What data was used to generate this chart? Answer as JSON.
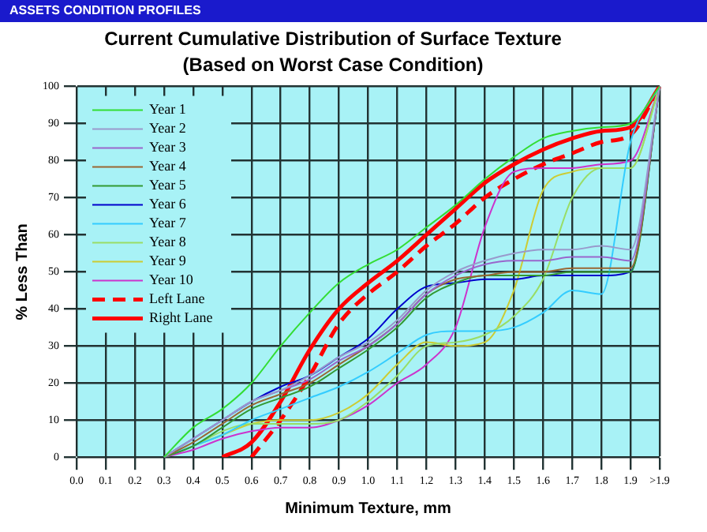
{
  "chart_data": {
    "type": "line",
    "title": "Current Cumulative Distribution of Surface Texture",
    "subtitle": "(Based on Worst Case Condition)",
    "annotations": [
      "ASSETS CONDITION PROFILES"
    ],
    "xlabel": "Minimum Texture, mm",
    "ylabel": "% Less Than",
    "categories": [
      "0.0",
      "0.1",
      "0.2",
      "0.3",
      "0.4",
      "0.5",
      "0.6",
      "0.7",
      "0.8",
      "0.9",
      "1.0",
      "1.1",
      "1.2",
      "1.3",
      "1.4",
      "1.5",
      "1.6",
      "1.7",
      "1.8",
      "1.9",
      ">1.9"
    ],
    "ylim": [
      0,
      100
    ],
    "yticks": [
      0,
      10,
      20,
      30,
      40,
      50,
      60,
      70,
      80,
      90,
      100
    ],
    "grid": true,
    "legend": "top left",
    "marker": "none",
    "series": [
      {
        "name": "Year 1",
        "color": "#33dd33",
        "values": [
          null,
          null,
          null,
          0,
          8,
          13,
          20,
          30,
          39,
          47,
          52,
          56,
          62,
          68,
          75,
          81,
          86,
          88,
          89,
          90,
          100
        ]
      },
      {
        "name": "Year 2",
        "color": "#9999cc",
        "values": [
          null,
          null,
          null,
          0,
          5,
          10,
          15,
          18,
          22,
          27,
          31,
          37,
          45,
          50,
          53,
          55,
          56,
          56,
          57,
          56,
          100
        ]
      },
      {
        "name": "Year 3",
        "color": "#9966cc",
        "values": [
          null,
          null,
          null,
          0,
          5,
          10,
          15,
          18,
          21,
          26,
          30,
          36,
          44,
          49,
          52,
          53,
          53,
          54,
          54,
          53,
          100
        ]
      },
      {
        "name": "Year 4",
        "color": "#996633",
        "values": [
          null,
          null,
          null,
          0,
          4,
          9,
          14,
          17,
          20,
          25,
          30,
          36,
          44,
          48,
          49,
          50,
          50,
          51,
          51,
          51,
          100
        ]
      },
      {
        "name": "Year 5",
        "color": "#339933",
        "values": [
          null,
          null,
          null,
          0,
          3,
          8,
          13,
          16,
          19,
          24,
          29,
          35,
          43,
          47,
          49,
          49,
          49,
          50,
          50,
          50,
          100
        ]
      },
      {
        "name": "Year 6",
        "color": "#0000cc",
        "values": [
          null,
          null,
          null,
          0,
          5,
          10,
          15,
          19,
          22,
          27,
          32,
          40,
          46,
          47,
          48,
          48,
          49,
          49,
          49,
          50,
          100
        ]
      },
      {
        "name": "Year 7",
        "color": "#33ccff",
        "values": [
          null,
          null,
          null,
          0,
          3,
          6,
          10,
          13,
          16,
          19,
          23,
          28,
          33,
          34,
          34,
          35,
          39,
          45,
          44,
          85,
          100
        ]
      },
      {
        "name": "Year 8",
        "color": "#99dd66",
        "values": [
          null,
          null,
          null,
          0,
          3,
          7,
          9,
          9,
          9,
          10,
          15,
          22,
          30,
          31,
          33,
          38,
          48,
          70,
          78,
          78,
          100
        ]
      },
      {
        "name": "Year 9",
        "color": "#cccc33",
        "values": [
          null,
          null,
          null,
          0,
          3,
          6,
          9,
          10,
          10,
          12,
          17,
          25,
          31,
          30,
          31,
          45,
          72,
          77,
          78,
          78,
          100
        ]
      },
      {
        "name": "Year 10",
        "color": "#cc33cc",
        "values": [
          null,
          null,
          null,
          0,
          2,
          5,
          7,
          8,
          8,
          10,
          14,
          20,
          25,
          35,
          62,
          77,
          78,
          78,
          79,
          80,
          100
        ]
      },
      {
        "name": "Left Lane",
        "color": "#ff0000",
        "line_style": "dashed",
        "values": [
          null,
          null,
          null,
          null,
          null,
          null,
          0,
          10,
          22,
          36,
          44,
          50,
          57,
          63,
          70,
          75,
          79,
          82,
          85,
          87,
          100
        ]
      },
      {
        "name": "Right Lane",
        "color": "#ff0000",
        "line_style": "solid",
        "values": [
          null,
          null,
          null,
          null,
          null,
          0,
          4,
          15,
          29,
          40,
          47,
          53,
          60,
          67,
          74,
          79,
          83,
          86,
          88,
          89,
          100
        ]
      }
    ]
  }
}
